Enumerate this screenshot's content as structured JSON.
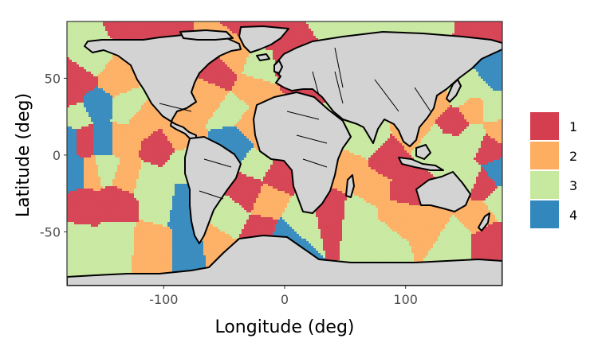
{
  "chart_data": {
    "type": "map",
    "title": "",
    "xlabel": "Longitude (deg)",
    "ylabel": "Latitude (deg)",
    "xlim": [
      -180,
      180
    ],
    "ylim": [
      -85,
      87
    ],
    "x_ticks": [
      {
        "value": -100,
        "label": "-100"
      },
      {
        "value": 0,
        "label": "0"
      },
      {
        "value": 100,
        "label": "100"
      }
    ],
    "y_ticks": [
      {
        "value": 50,
        "label": "50"
      },
      {
        "value": 0,
        "label": "0"
      },
      {
        "value": -50,
        "label": "-50"
      }
    ],
    "grid": true,
    "legend": {
      "position": "right",
      "entries": [
        {
          "label": "1",
          "color": "#d53e4f"
        },
        {
          "label": "2",
          "color": "#fdae61"
        },
        {
          "label": "3",
          "color": "#c7e89f"
        },
        {
          "label": "4",
          "color": "#3288bd"
        }
      ]
    },
    "land_color": "#d3d3d3",
    "regions": [
      {
        "lon": -120,
        "lat": 80,
        "class": 1
      },
      {
        "lon": -20,
        "lat": 82,
        "class": 1
      },
      {
        "lon": 160,
        "lat": 80,
        "class": 1
      },
      {
        "lon": 50,
        "lat": 84,
        "class": 3
      },
      {
        "lon": 120,
        "lat": 84,
        "class": 3
      },
      {
        "lon": -160,
        "lat": 62,
        "class": 3
      },
      {
        "lon": -170,
        "lat": 50,
        "class": 1
      },
      {
        "lon": -140,
        "lat": 50,
        "class": 2
      },
      {
        "lon": -155,
        "lat": 32,
        "class": 4
      },
      {
        "lon": -130,
        "lat": 30,
        "class": 3
      },
      {
        "lon": -172,
        "lat": 25,
        "class": 3
      },
      {
        "lon": -178,
        "lat": 10,
        "class": 4
      },
      {
        "lon": -165,
        "lat": 10,
        "class": 1
      },
      {
        "lon": -150,
        "lat": 10,
        "class": 4
      },
      {
        "lon": -135,
        "lat": 10,
        "class": 2
      },
      {
        "lon": -118,
        "lat": 22,
        "class": 2
      },
      {
        "lon": -102,
        "lat": 5,
        "class": 1
      },
      {
        "lon": -88,
        "lat": 12,
        "class": 2
      },
      {
        "lon": -85,
        "lat": -5,
        "class": 3
      },
      {
        "lon": -172,
        "lat": -12,
        "class": 4
      },
      {
        "lon": -160,
        "lat": -12,
        "class": 2
      },
      {
        "lon": -148,
        "lat": -10,
        "class": 3
      },
      {
        "lon": -132,
        "lat": -14,
        "class": 2
      },
      {
        "lon": -112,
        "lat": -18,
        "class": 3
      },
      {
        "lon": -165,
        "lat": -32,
        "class": 1
      },
      {
        "lon": -140,
        "lat": -30,
        "class": 1
      },
      {
        "lon": -100,
        "lat": -30,
        "class": 3
      },
      {
        "lon": -86,
        "lat": -32,
        "class": 4
      },
      {
        "lon": -170,
        "lat": -58,
        "class": 3
      },
      {
        "lon": -140,
        "lat": -58,
        "class": 3
      },
      {
        "lon": -110,
        "lat": -60,
        "class": 2
      },
      {
        "lon": -75,
        "lat": -60,
        "class": 4
      },
      {
        "lon": -60,
        "lat": -58,
        "class": 2
      },
      {
        "lon": -52,
        "lat": 52,
        "class": 1
      },
      {
        "lon": -40,
        "lat": 62,
        "class": 2
      },
      {
        "lon": -60,
        "lat": 38,
        "class": 2
      },
      {
        "lon": -45,
        "lat": 30,
        "class": 3
      },
      {
        "lon": -30,
        "lat": 44,
        "class": 2
      },
      {
        "lon": -25,
        "lat": 58,
        "class": 3
      },
      {
        "lon": -28,
        "lat": 18,
        "class": 2
      },
      {
        "lon": -40,
        "lat": 8,
        "class": 4
      },
      {
        "lon": -20,
        "lat": -5,
        "class": 3
      },
      {
        "lon": -30,
        "lat": -25,
        "class": 1
      },
      {
        "lon": -45,
        "lat": -40,
        "class": 3
      },
      {
        "lon": -15,
        "lat": -30,
        "class": 2
      },
      {
        "lon": -5,
        "lat": -12,
        "class": 1
      },
      {
        "lon": -12,
        "lat": 5,
        "class": 2
      },
      {
        "lon": -20,
        "lat": -50,
        "class": 1
      },
      {
        "lon": 0,
        "lat": -55,
        "class": 4
      },
      {
        "lon": 15,
        "lat": -42,
        "class": 3
      },
      {
        "lon": 8,
        "lat": 62,
        "class": 1
      },
      {
        "lon": 38,
        "lat": -38,
        "class": 1
      },
      {
        "lon": 60,
        "lat": -40,
        "class": 3
      },
      {
        "lon": 55,
        "lat": -10,
        "class": 2
      },
      {
        "lon": 65,
        "lat": 10,
        "class": 3
      },
      {
        "lon": 85,
        "lat": -5,
        "class": 1
      },
      {
        "lon": 75,
        "lat": -20,
        "class": 2
      },
      {
        "lon": 100,
        "lat": -22,
        "class": 1
      },
      {
        "lon": 95,
        "lat": -40,
        "class": 2
      },
      {
        "lon": 80,
        "lat": -55,
        "class": 3
      },
      {
        "lon": 120,
        "lat": -45,
        "class": 2
      },
      {
        "lon": 140,
        "lat": -55,
        "class": 3
      },
      {
        "lon": 160,
        "lat": -40,
        "class": 2
      },
      {
        "lon": 170,
        "lat": -55,
        "class": 1
      },
      {
        "lon": 178,
        "lat": -30,
        "class": 3
      },
      {
        "lon": 165,
        "lat": -20,
        "class": 1
      },
      {
        "lon": 150,
        "lat": -15,
        "class": 3
      },
      {
        "lon": 178,
        "lat": -12,
        "class": 4
      },
      {
        "lon": 170,
        "lat": 5,
        "class": 1
      },
      {
        "lon": 155,
        "lat": 10,
        "class": 3
      },
      {
        "lon": 140,
        "lat": 22,
        "class": 1
      },
      {
        "lon": 155,
        "lat": 30,
        "class": 2
      },
      {
        "lon": 175,
        "lat": 30,
        "class": 3
      },
      {
        "lon": 170,
        "lat": 52,
        "class": 4
      },
      {
        "lon": 160,
        "lat": 45,
        "class": 3
      },
      {
        "lon": 145,
        "lat": 40,
        "class": 3
      },
      {
        "lon": 135,
        "lat": 5,
        "class": 3
      },
      {
        "lon": 120,
        "lat": 10,
        "class": 3
      },
      {
        "lon": 112,
        "lat": 15,
        "class": 2
      },
      {
        "lon": 125,
        "lat": 35,
        "class": 2
      },
      {
        "lon": 178,
        "lat": 15,
        "class": 2
      },
      {
        "lon": -178,
        "lat": 40,
        "class": 1
      }
    ]
  }
}
